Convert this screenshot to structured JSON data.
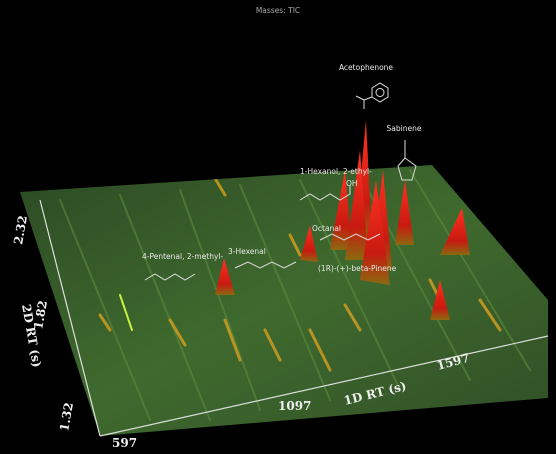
{
  "header": {
    "title": "Masses: TIC"
  },
  "axes": {
    "x": {
      "label": "1D RT (s)",
      "ticks": [
        "597",
        "1097",
        "1597"
      ]
    },
    "y": {
      "label": "2D RT (s)",
      "ticks": [
        "1.32",
        "1.82",
        "2.32"
      ]
    }
  },
  "annotations": [
    "Acetophenone",
    "Sabinene",
    "1-Hexanol, 2-ethyl-",
    "OH",
    "Octanal",
    "(1R)-(+)-beta-Pinene",
    "4-Pentenal, 2-methyl-",
    "3-Hexenal"
  ]
}
